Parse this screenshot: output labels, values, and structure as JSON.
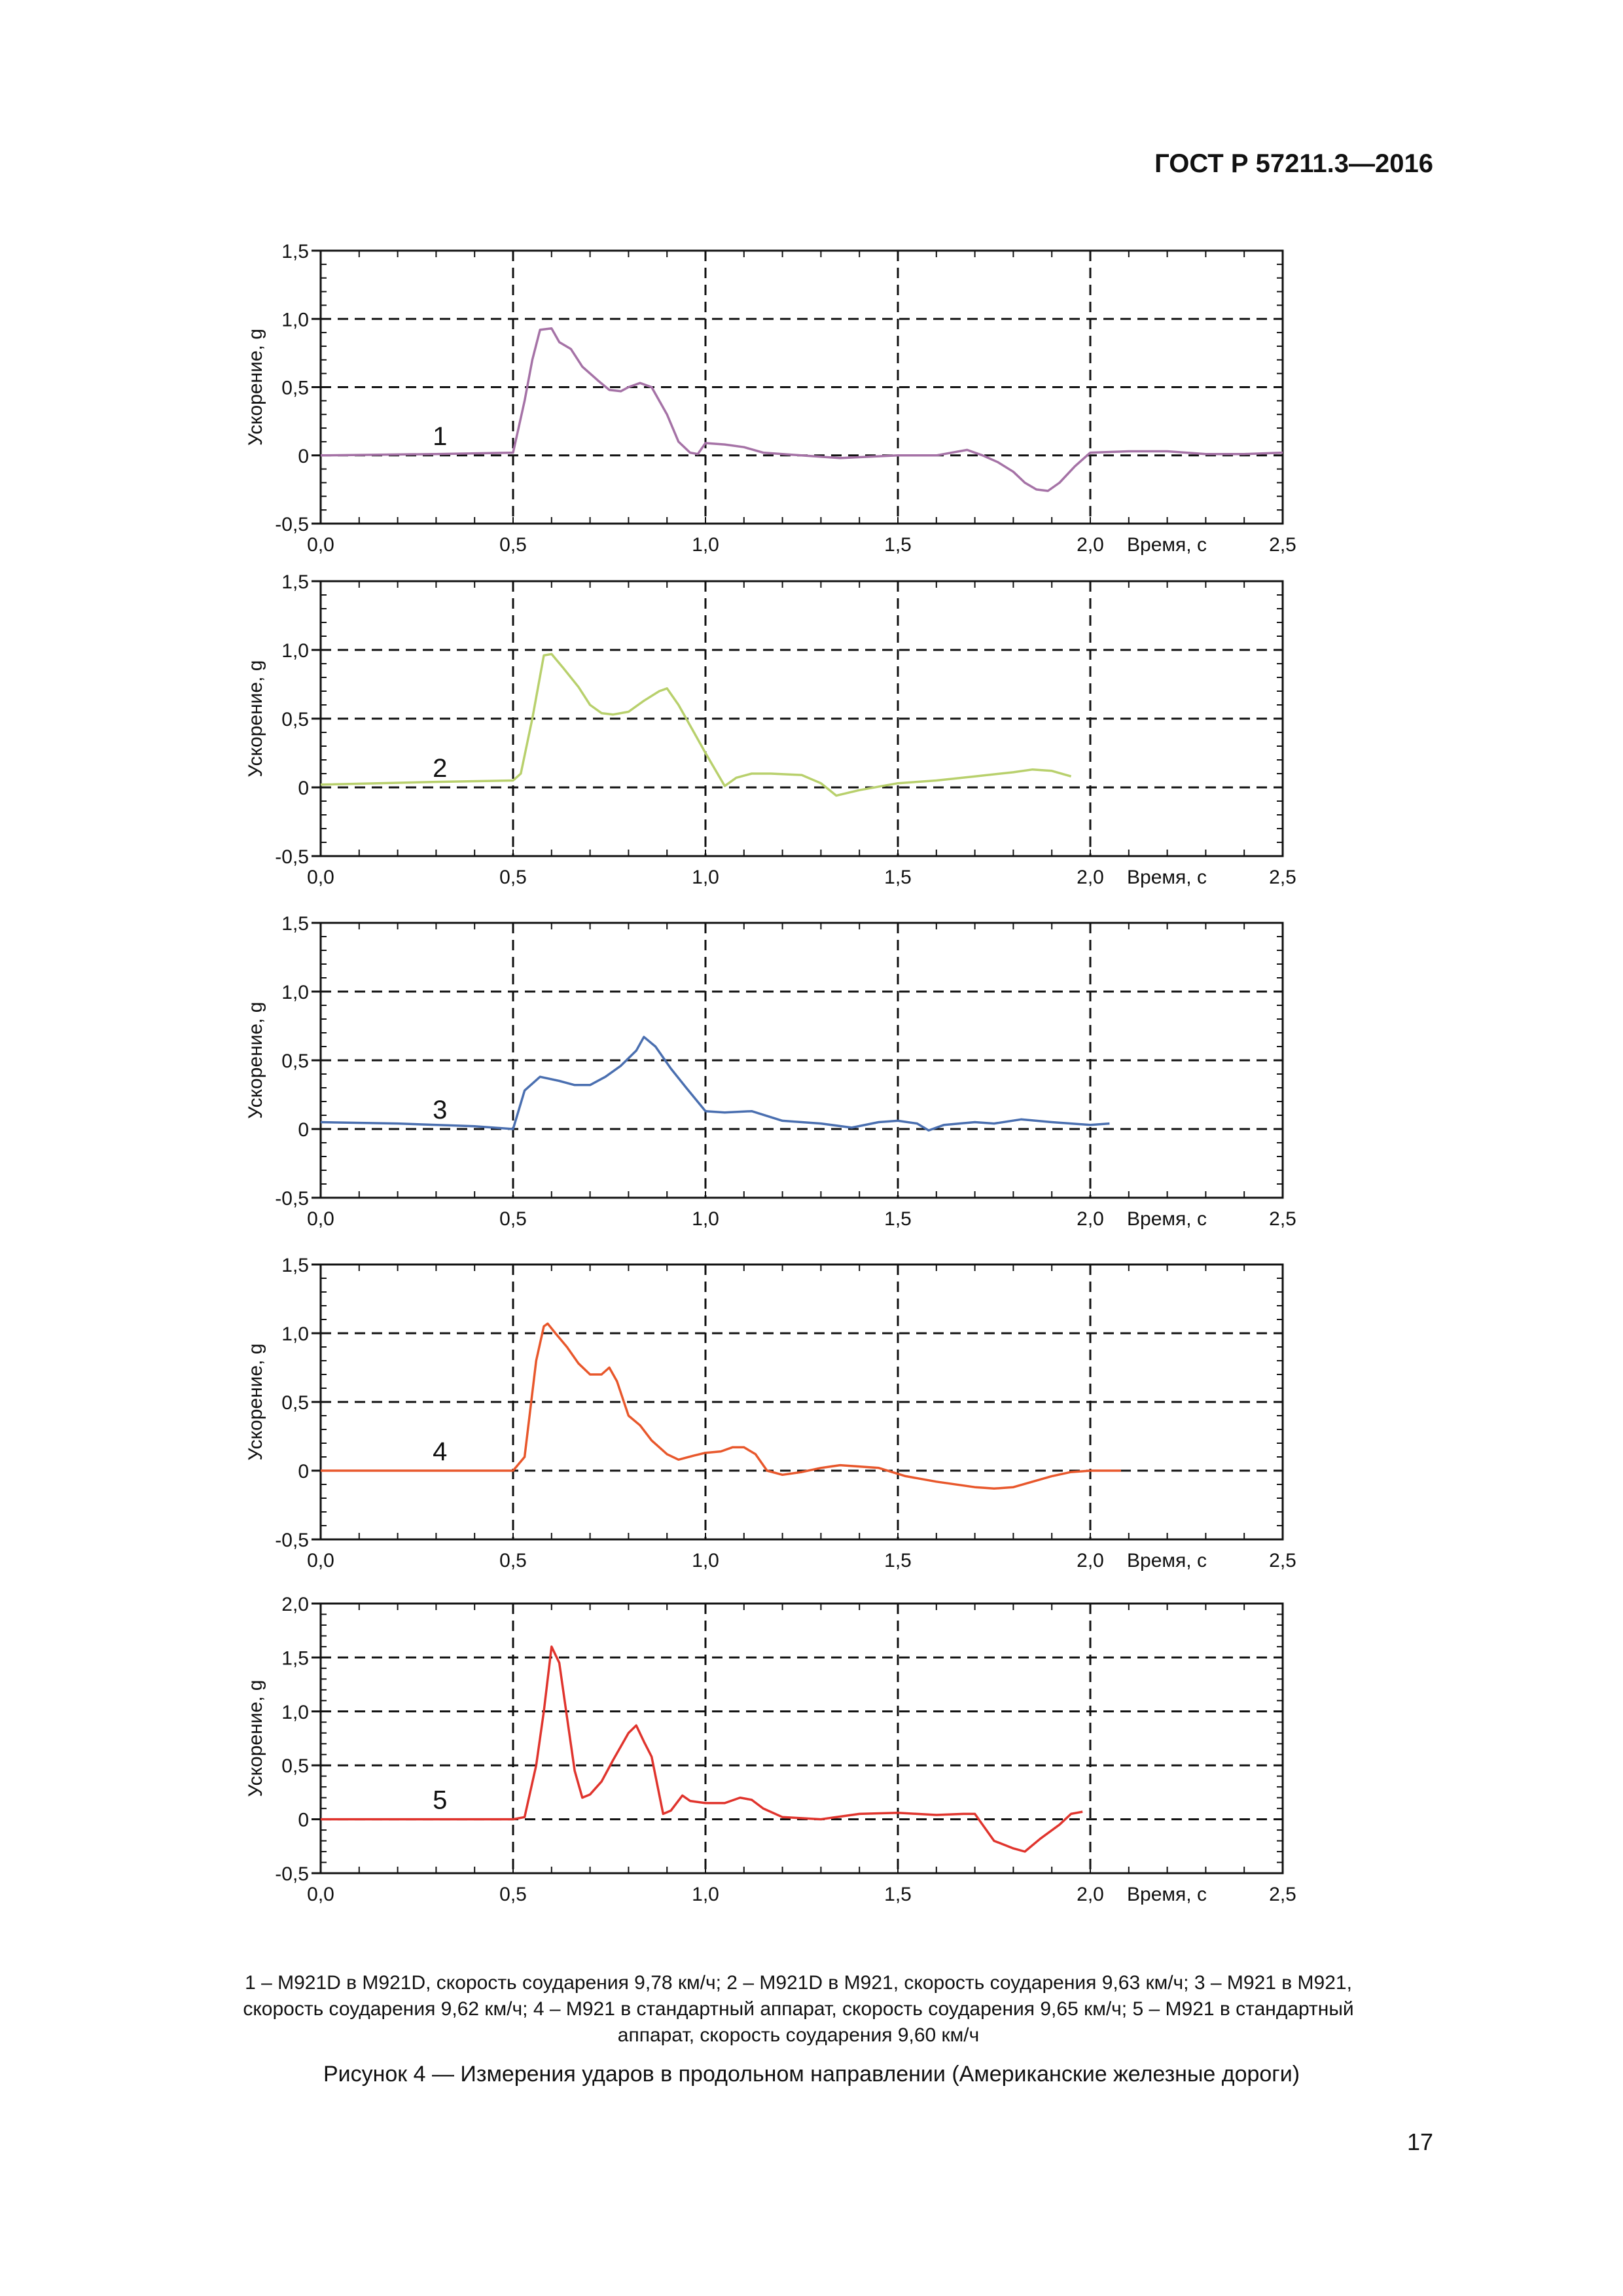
{
  "header": {
    "standard": "ГОСТ Р 57211.3—2016"
  },
  "page_number": "17",
  "legend": {
    "items": [
      "1 – M921D в M921D, скорость соударения 9,78 км/ч;",
      "2 – M921D в M921, скорость соударения 9,63 км/ч;",
      "3 – M921 в M921, скорость соударения 9,62 км/ч;",
      "4 – M921 в стандартный аппарат, скорость соударения 9,65 км/ч;",
      "5 – M921 в стандартный аппарат, скорость соударения 9,60 км/ч"
    ]
  },
  "caption": "Рисунок 4 — Измерения ударов в продольном направлении (Американские железные дороги)",
  "colors": {
    "grid": "#111111",
    "axis": "#111111"
  },
  "chart_data": [
    {
      "type": "line",
      "label": "1",
      "color": "#a572a6",
      "ylabel": "Ускорение, g",
      "xlabel": "Время, с",
      "xlim": [
        0,
        2.5
      ],
      "ylim": [
        -0.5,
        1.5
      ],
      "xticks": [
        "0,0",
        "0,5",
        "1,0",
        "1,5",
        "2,0",
        "2,5"
      ],
      "yticks": [
        "-0,5",
        "0",
        "0,5",
        "1,0",
        "1,5"
      ],
      "x": [
        0,
        0.3,
        0.5,
        0.53,
        0.55,
        0.57,
        0.6,
        0.62,
        0.65,
        0.68,
        0.72,
        0.75,
        0.78,
        0.8,
        0.83,
        0.86,
        0.9,
        0.93,
        0.96,
        0.98,
        1.0,
        1.05,
        1.1,
        1.15,
        1.2,
        1.35,
        1.5,
        1.6,
        1.68,
        1.72,
        1.76,
        1.8,
        1.83,
        1.86,
        1.89,
        1.92,
        1.96,
        2.0,
        2.1,
        2.2,
        2.3,
        2.4,
        2.5
      ],
      "y": [
        0,
        0.01,
        0.02,
        0.4,
        0.7,
        0.92,
        0.93,
        0.83,
        0.78,
        0.65,
        0.55,
        0.48,
        0.47,
        0.5,
        0.53,
        0.5,
        0.3,
        0.1,
        0.02,
        0.01,
        0.09,
        0.08,
        0.06,
        0.02,
        0.01,
        -0.02,
        0.0,
        0.0,
        0.04,
        0.0,
        -0.05,
        -0.12,
        -0.2,
        -0.25,
        -0.26,
        -0.2,
        -0.08,
        0.02,
        0.03,
        0.03,
        0.01,
        0.01,
        0.02
      ]
    },
    {
      "type": "line",
      "label": "2",
      "color": "#b8d06c",
      "ylabel": "Ускорение, g",
      "xlabel": "Время, с",
      "xlim": [
        0,
        2.5
      ],
      "ylim": [
        -0.5,
        1.5
      ],
      "xticks": [
        "0,0",
        "0,5",
        "1,0",
        "1,5",
        "2,0",
        "2,5"
      ],
      "yticks": [
        "-0,5",
        "0",
        "0,5",
        "1,0",
        "1,5"
      ],
      "x": [
        0,
        0.3,
        0.5,
        0.52,
        0.55,
        0.58,
        0.6,
        0.63,
        0.67,
        0.7,
        0.73,
        0.76,
        0.8,
        0.84,
        0.88,
        0.9,
        0.93,
        0.97,
        1.0,
        1.05,
        1.08,
        1.12,
        1.17,
        1.25,
        1.3,
        1.34,
        1.4,
        1.5,
        1.6,
        1.7,
        1.8,
        1.85,
        1.9,
        1.95
      ],
      "y": [
        0.02,
        0.04,
        0.05,
        0.1,
        0.5,
        0.96,
        0.97,
        0.87,
        0.73,
        0.6,
        0.54,
        0.53,
        0.55,
        0.63,
        0.7,
        0.72,
        0.6,
        0.4,
        0.25,
        0.01,
        0.07,
        0.1,
        0.1,
        0.09,
        0.03,
        -0.06,
        -0.02,
        0.03,
        0.05,
        0.08,
        0.11,
        0.13,
        0.12,
        0.08
      ]
    },
    {
      "type": "line",
      "label": "3",
      "color": "#4a6fb0",
      "ylabel": "Ускорение, g",
      "xlabel": "Время, с",
      "xlim": [
        0,
        2.5
      ],
      "ylim": [
        -0.5,
        1.5
      ],
      "xticks": [
        "0,0",
        "0,5",
        "1,0",
        "1,5",
        "2,0",
        "2,5"
      ],
      "yticks": [
        "-0,5",
        "0",
        "0,5",
        "1,0",
        "1,5"
      ],
      "x": [
        0,
        0.2,
        0.4,
        0.5,
        0.53,
        0.57,
        0.62,
        0.66,
        0.7,
        0.74,
        0.78,
        0.82,
        0.84,
        0.87,
        0.91,
        0.95,
        1.0,
        1.05,
        1.12,
        1.2,
        1.3,
        1.38,
        1.45,
        1.5,
        1.55,
        1.58,
        1.62,
        1.7,
        1.75,
        1.82,
        1.9,
        2.0,
        2.05
      ],
      "y": [
        0.05,
        0.04,
        0.02,
        0.0,
        0.28,
        0.38,
        0.35,
        0.32,
        0.32,
        0.38,
        0.46,
        0.57,
        0.67,
        0.6,
        0.44,
        0.3,
        0.13,
        0.12,
        0.13,
        0.06,
        0.04,
        0.01,
        0.05,
        0.06,
        0.04,
        -0.01,
        0.03,
        0.05,
        0.04,
        0.07,
        0.05,
        0.03,
        0.04
      ]
    },
    {
      "type": "line",
      "label": "4",
      "color": "#e8572b",
      "ylabel": "Ускорение, g",
      "xlabel": "Время, с",
      "xlim": [
        0,
        2.5
      ],
      "ylim": [
        -0.5,
        1.5
      ],
      "xticks": [
        "0,0",
        "0,5",
        "1,0",
        "1,5",
        "2,0",
        "2,5"
      ],
      "yticks": [
        "-0,5",
        "0",
        "0,5",
        "1,0",
        "1,5"
      ],
      "x": [
        0,
        0.3,
        0.5,
        0.53,
        0.56,
        0.58,
        0.59,
        0.61,
        0.64,
        0.67,
        0.7,
        0.73,
        0.75,
        0.77,
        0.8,
        0.83,
        0.86,
        0.9,
        0.93,
        0.97,
        1.0,
        1.04,
        1.07,
        1.1,
        1.13,
        1.16,
        1.2,
        1.25,
        1.3,
        1.35,
        1.45,
        1.52,
        1.6,
        1.7,
        1.75,
        1.8,
        1.85,
        1.9,
        1.95,
        2.0,
        2.08
      ],
      "y": [
        0,
        0.0,
        0.0,
        0.1,
        0.8,
        1.05,
        1.07,
        1.0,
        0.9,
        0.78,
        0.7,
        0.7,
        0.75,
        0.65,
        0.4,
        0.33,
        0.22,
        0.12,
        0.08,
        0.11,
        0.13,
        0.14,
        0.17,
        0.17,
        0.12,
        0.0,
        -0.03,
        -0.01,
        0.02,
        0.04,
        0.02,
        -0.04,
        -0.08,
        -0.12,
        -0.13,
        -0.12,
        -0.08,
        -0.04,
        -0.01,
        0.0,
        0.0
      ]
    },
    {
      "type": "line",
      "label": "5",
      "color": "#e0342d",
      "ylabel": "Ускорение, g",
      "xlabel": "Время, с",
      "xlim": [
        0,
        2.5
      ],
      "ylim": [
        -0.5,
        2.0
      ],
      "xticks": [
        "0,0",
        "0,5",
        "1,0",
        "1,5",
        "2,0",
        "2,5"
      ],
      "yticks": [
        "-0,5",
        "0",
        "0,5",
        "1,0",
        "1,5",
        "2,0"
      ],
      "x": [
        0,
        0.3,
        0.5,
        0.53,
        0.56,
        0.58,
        0.6,
        0.62,
        0.64,
        0.66,
        0.68,
        0.7,
        0.73,
        0.76,
        0.8,
        0.82,
        0.84,
        0.86,
        0.89,
        0.91,
        0.94,
        0.96,
        1.0,
        1.05,
        1.09,
        1.12,
        1.15,
        1.2,
        1.3,
        1.4,
        1.5,
        1.55,
        1.6,
        1.67,
        1.7,
        1.75,
        1.8,
        1.83,
        1.87,
        1.92,
        1.95,
        1.98
      ],
      "y": [
        0,
        0.0,
        0.0,
        0.02,
        0.5,
        1.0,
        1.6,
        1.45,
        0.95,
        0.45,
        0.2,
        0.23,
        0.35,
        0.55,
        0.8,
        0.87,
        0.72,
        0.58,
        0.05,
        0.08,
        0.22,
        0.17,
        0.15,
        0.15,
        0.2,
        0.18,
        0.1,
        0.02,
        0.0,
        0.05,
        0.06,
        0.05,
        0.04,
        0.05,
        0.05,
        -0.2,
        -0.27,
        -0.3,
        -0.18,
        -0.05,
        0.05,
        0.07
      ]
    }
  ]
}
